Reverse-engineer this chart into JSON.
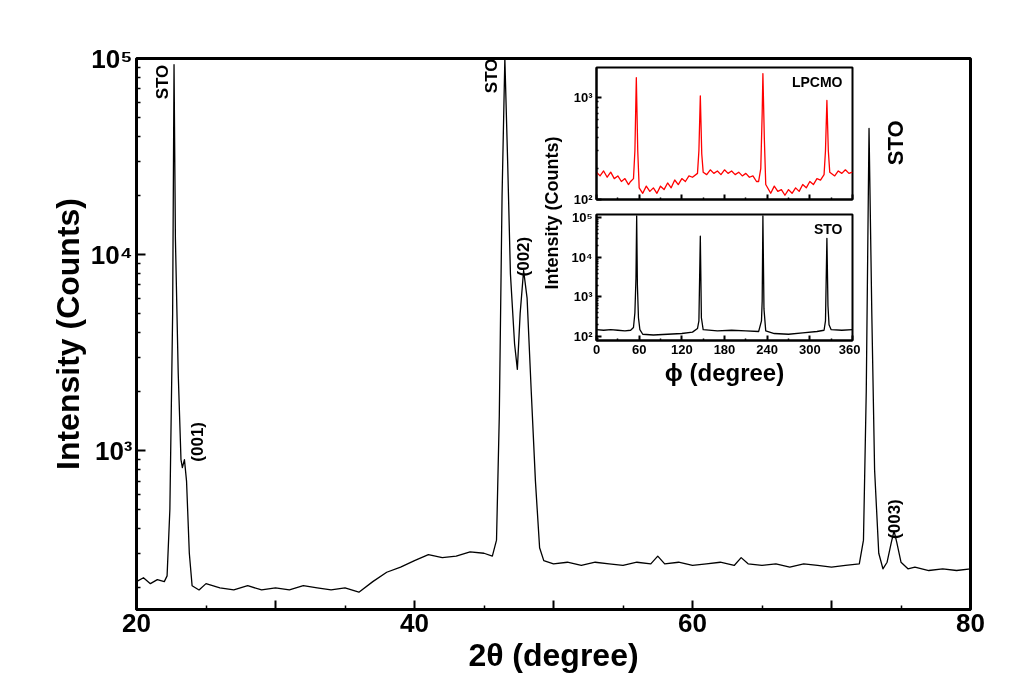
{
  "chart_data": [
    {
      "type": "line",
      "xlabel": "2θ (degree)",
      "ylabel": "Intensity (Counts)",
      "log": true,
      "xlim": [
        20,
        80
      ],
      "ylim": [
        155,
        100000
      ],
      "xticks": [
        20,
        {
          "value": 30,
          "label": null
        },
        40,
        {
          "value": 50,
          "label": null
        },
        60,
        {
          "value": 70,
          "label": null
        },
        80
      ],
      "yticks": [
        {
          "value": 1000,
          "label": "10³"
        },
        {
          "value": 10000,
          "label": "10⁴"
        },
        {
          "value": 100000,
          "label": "10⁵"
        }
      ],
      "series": [
        {
          "color": "#000000",
          "x": [
            20,
            20.5,
            21,
            21.5,
            22,
            22.2,
            22.4,
            22.6,
            22.7,
            22.8,
            23.0,
            23.2,
            23.3,
            23.45,
            23.6,
            23.8,
            24,
            24.5,
            25,
            26,
            27,
            28,
            29,
            30,
            31,
            32,
            33,
            34,
            35,
            36,
            37,
            38,
            39,
            40,
            41,
            42,
            43,
            44,
            45,
            45.6,
            45.9,
            46.1,
            46.3,
            46.5,
            46.7,
            46.9,
            47.2,
            47.4,
            47.6,
            47.85,
            48.1,
            48.4,
            48.7,
            49,
            49.3,
            50,
            51,
            52,
            53,
            54,
            55,
            56,
            57,
            57.5,
            58,
            59,
            60,
            61,
            62,
            63,
            63.5,
            64,
            65,
            66,
            67,
            68,
            69,
            70,
            71,
            72,
            72.3,
            72.5,
            72.7,
            72.9,
            73.1,
            73.4,
            73.7,
            74.0,
            74.3,
            74.5,
            74.7,
            75,
            75.5,
            76,
            77,
            78,
            79,
            80
          ],
          "values": [
            215,
            225,
            210,
            220,
            215,
            230,
            500,
            5000,
            93000,
            12000,
            2500,
            900,
            820,
            900,
            700,
            300,
            205,
            195,
            210,
            200,
            195,
            205,
            195,
            200,
            195,
            205,
            200,
            195,
            200,
            190,
            215,
            240,
            255,
            275,
            295,
            285,
            290,
            305,
            300,
            290,
            350,
            1500,
            20000,
            100000,
            30000,
            8000,
            3500,
            2600,
            5000,
            8300,
            6000,
            2000,
            700,
            320,
            275,
            265,
            270,
            260,
            270,
            265,
            260,
            270,
            265,
            290,
            265,
            270,
            260,
            265,
            270,
            260,
            285,
            265,
            260,
            265,
            255,
            265,
            260,
            255,
            260,
            265,
            350,
            2000,
            44000,
            5000,
            800,
            300,
            250,
            270,
            340,
            390,
            340,
            270,
            250,
            255,
            245,
            250,
            245,
            250
          ]
        }
      ],
      "annotations": [
        {
          "text": "STO",
          "x": 22.7,
          "y": 93000
        },
        {
          "text": "(001)",
          "x": 23.45,
          "y": 900
        },
        {
          "text": "STO",
          "x": 46.5,
          "y": 100000
        },
        {
          "text": "(002)",
          "x": 47.85,
          "y": 8300
        },
        {
          "text": "STO",
          "x": 72.7,
          "y": 44000
        },
        {
          "text": "(003)",
          "x": 74.5,
          "y": 390
        }
      ]
    },
    {
      "type": "line",
      "ylabel": "Intensity (Counts)",
      "log": true,
      "xlim": [
        0,
        360
      ],
      "ylim": [
        100,
        1950
      ],
      "xticks": [
        0,
        60,
        120,
        180,
        240,
        300,
        360
      ],
      "yticks": [
        {
          "value": 100,
          "label": "10²"
        },
        {
          "value": 1000,
          "label": "10³"
        }
      ],
      "tick_labels": "y",
      "series": [
        {
          "color": "#ff0000",
          "x": [
            0,
            5,
            10,
            15,
            20,
            25,
            30,
            35,
            40,
            45,
            48,
            52,
            54,
            56,
            58,
            60,
            65,
            70,
            75,
            80,
            85,
            90,
            95,
            100,
            105,
            110,
            115,
            120,
            125,
            130,
            135,
            142,
            144,
            146,
            148,
            150,
            155,
            160,
            165,
            170,
            175,
            180,
            185,
            190,
            195,
            200,
            205,
            210,
            215,
            220,
            225,
            228,
            231,
            233,
            234,
            236,
            238,
            245,
            250,
            255,
            260,
            265,
            270,
            275,
            280,
            285,
            290,
            295,
            300,
            305,
            310,
            315,
            320,
            322,
            324,
            326,
            328,
            335,
            340,
            345,
            350,
            355,
            360
          ],
          "values": [
            185,
            170,
            190,
            165,
            185,
            160,
            170,
            150,
            160,
            140,
            150,
            160,
            300,
            1550,
            300,
            130,
            115,
            135,
            120,
            130,
            115,
            135,
            125,
            145,
            130,
            155,
            140,
            160,
            150,
            170,
            165,
            180,
            300,
            1030,
            280,
            185,
            175,
            195,
            180,
            190,
            175,
            195,
            180,
            190,
            175,
            185,
            170,
            180,
            165,
            170,
            150,
            150,
            200,
            700,
            1700,
            400,
            140,
            115,
            135,
            120,
            125,
            110,
            125,
            115,
            130,
            120,
            140,
            130,
            150,
            140,
            160,
            155,
            175,
            300,
            930,
            300,
            185,
            170,
            190,
            180,
            195,
            180,
            185
          ]
        }
      ],
      "annotations": [
        "LPCMO"
      ]
    },
    {
      "type": "line",
      "xlabel": "ϕ (degree)",
      "log": true,
      "xlim": [
        0,
        360
      ],
      "ylim": [
        80,
        120000
      ],
      "xticks": [
        0,
        60,
        120,
        180,
        240,
        300,
        360
      ],
      "yticks": [
        {
          "value": 100,
          "label": "10²"
        },
        {
          "value": 1000,
          "label": "10³"
        },
        {
          "value": 10000,
          "label": "10⁴"
        },
        {
          "value": 100000,
          "label": "10⁵"
        }
      ],
      "series": [
        {
          "color": "#000000",
          "x": [
            0,
            10,
            20,
            30,
            40,
            48,
            52,
            54,
            55.5,
            56.5,
            57.5,
            59,
            61,
            65,
            80,
            100,
            120,
            135,
            142,
            144,
            146,
            147.5,
            150,
            170,
            190,
            210,
            228,
            232,
            233,
            234,
            235.5,
            238,
            250,
            270,
            290,
            310,
            320,
            322,
            324,
            325.5,
            327,
            330,
            345,
            360
          ],
          "values": [
            150,
            145,
            150,
            145,
            140,
            145,
            170,
            400,
            3000,
            110000,
            2000,
            300,
            150,
            115,
            110,
            115,
            120,
            130,
            160,
            250,
            34000,
            300,
            150,
            140,
            145,
            140,
            135,
            250,
            800,
            110000,
            500,
            140,
            120,
            115,
            125,
            135,
            145,
            250,
            30000,
            600,
            200,
            150,
            145,
            150
          ]
        }
      ],
      "annotations": [
        "STO"
      ]
    }
  ]
}
